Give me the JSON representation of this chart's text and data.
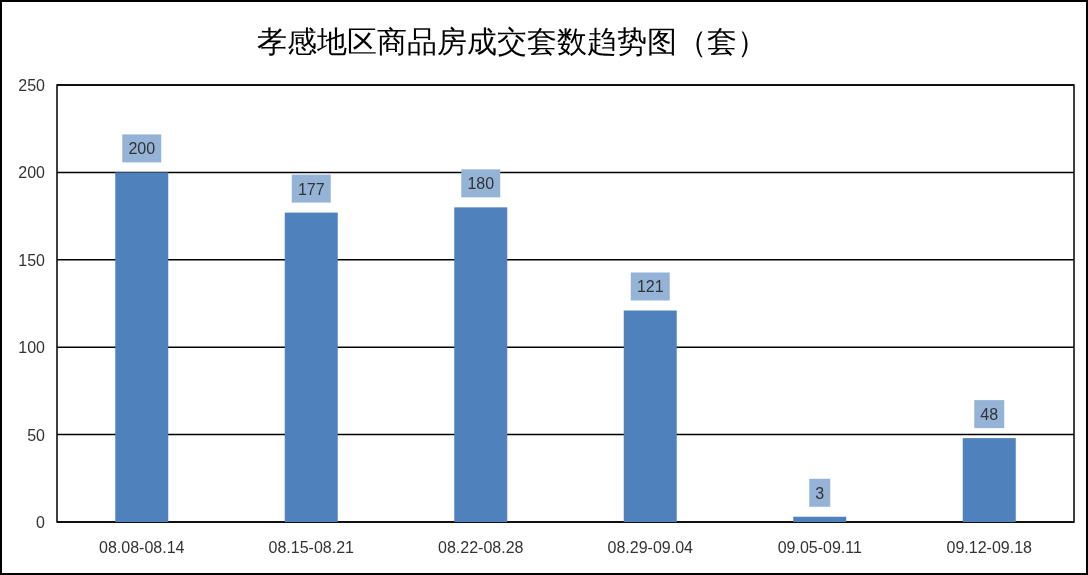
{
  "chart_data": {
    "type": "bar",
    "title": "孝感地区商品房成交套数趋势图（套）",
    "categories": [
      "08.08-08.14",
      "08.15-08.21",
      "08.22-08.28",
      "08.29-09.04",
      "09.05-09.11",
      "09.12-09.18"
    ],
    "values": [
      200,
      177,
      180,
      121,
      3,
      48
    ],
    "color": "#4f81bd",
    "ylim": [
      0,
      250
    ],
    "yticks": [
      0,
      50,
      100,
      150,
      200,
      250
    ],
    "grid": "y",
    "data_labels": true
  }
}
